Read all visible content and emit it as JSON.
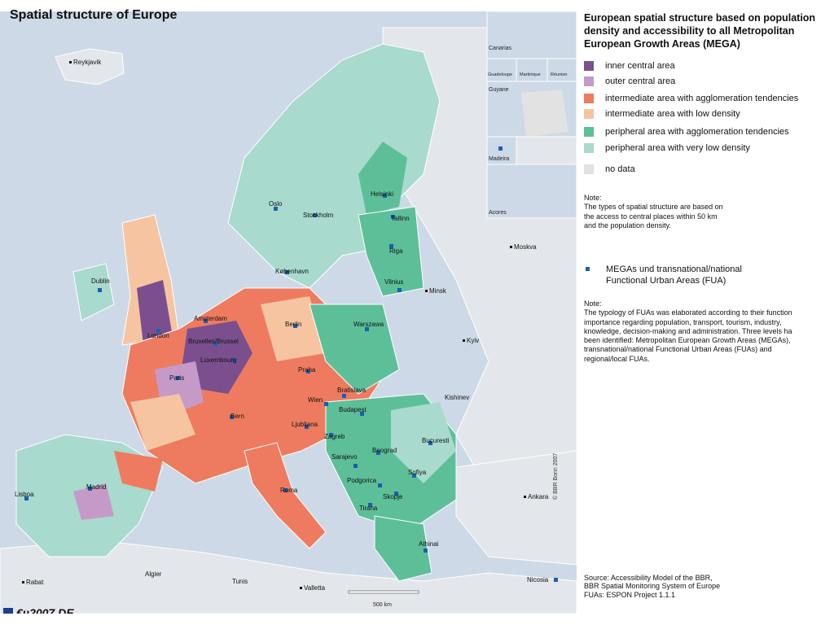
{
  "map": {
    "title": "Spatial structure of Europe",
    "copyright": "© BBR Bonn 2007",
    "scale_label": "500 km",
    "logo_text": "€υ2007.DE",
    "inset_labels": [
      "Canarias",
      "Guadeloupe",
      "Martinique",
      "Réunion",
      "Guyane",
      "Madeira",
      "Acores"
    ],
    "cities": [
      {
        "id": "reykjavik",
        "label": "Reykjavik"
      },
      {
        "id": "oslo",
        "label": "Oslo"
      },
      {
        "id": "stockholm",
        "label": "Stockholm"
      },
      {
        "id": "helsinki",
        "label": "Helsinki"
      },
      {
        "id": "tallinn",
        "label": "Tallinn"
      },
      {
        "id": "riga",
        "label": "Riga"
      },
      {
        "id": "moskva",
        "label": "Moskva"
      },
      {
        "id": "kobenhavn",
        "label": "København"
      },
      {
        "id": "vilnius",
        "label": "Vilnius"
      },
      {
        "id": "minsk",
        "label": "Minsk"
      },
      {
        "id": "dublin",
        "label": "Dublin"
      },
      {
        "id": "amsterdam",
        "label": "Amsterdam"
      },
      {
        "id": "berlin",
        "label": "Berlin"
      },
      {
        "id": "warszawa",
        "label": "Warszawa"
      },
      {
        "id": "london",
        "label": "London"
      },
      {
        "id": "bruxelles",
        "label": "Bruxelles/Brussel"
      },
      {
        "id": "kyiv",
        "label": "Kyiv"
      },
      {
        "id": "luxembourg",
        "label": "Luxembourg"
      },
      {
        "id": "praha",
        "label": "Praha"
      },
      {
        "id": "paris",
        "label": "Paris"
      },
      {
        "id": "bratislava",
        "label": "Bratislava"
      },
      {
        "id": "wien",
        "label": "Wien"
      },
      {
        "id": "kishinev",
        "label": "Kishinev"
      },
      {
        "id": "budapest",
        "label": "Budapest"
      },
      {
        "id": "bern",
        "label": "Bern"
      },
      {
        "id": "ljubljana",
        "label": "Ljubljana"
      },
      {
        "id": "zagreb",
        "label": "Zagreb"
      },
      {
        "id": "bucuresti",
        "label": "Bucuresti"
      },
      {
        "id": "beograd",
        "label": "Beograd"
      },
      {
        "id": "sarajevo",
        "label": "Sarajevo"
      },
      {
        "id": "sofiya",
        "label": "Sofiya"
      },
      {
        "id": "madrid",
        "label": "Madrid"
      },
      {
        "id": "podgorica",
        "label": "Podgorica"
      },
      {
        "id": "roma",
        "label": "Roma"
      },
      {
        "id": "skopje",
        "label": "Skopje"
      },
      {
        "id": "lisboa",
        "label": "Lisboa"
      },
      {
        "id": "tirana",
        "label": "Tirana"
      },
      {
        "id": "ankara",
        "label": "Ankara"
      },
      {
        "id": "athinai",
        "label": "Athinai"
      },
      {
        "id": "algier",
        "label": "Algier"
      },
      {
        "id": "tunis",
        "label": "Tunis"
      },
      {
        "id": "nicosia",
        "label": "Nicosia"
      },
      {
        "id": "rabat",
        "label": "Rabat"
      },
      {
        "id": "valletta",
        "label": "Valletta"
      }
    ]
  },
  "legend": {
    "title": "European spatial structure based on population density and accessibility to all Metropolitan European Growth Areas (MEGA)",
    "items": [
      {
        "label": "inner central area",
        "color": "#7b4f8e"
      },
      {
        "label": "outer central area",
        "color": "#c59ac9"
      },
      {
        "label": "intermediate area with agglomeration tendencies",
        "color": "#ee7b5f"
      },
      {
        "label": "intermediate area with low density",
        "color": "#f7c4a1"
      },
      {
        "label": "peripheral area with agglomeration tendencies",
        "color": "#5dbf98"
      },
      {
        "label": "peripheral area with very low density",
        "color": "#a8dacd"
      },
      {
        "label": "no data",
        "color": "#e2e2e2"
      }
    ],
    "note1": "Note:\nThe types of spatial structure are based on\nthe access to central places within 50 km\nand the population density.",
    "fua_label": "MEGAs und transnational/national\nFunctional Urban Areas (FUA)",
    "fua_color": "#1a5fb0",
    "note2": "Note:\nThe typology of FUAs was elaborated according to their function\nimportance regarding population, transport, tourism, industry,\nknowledge, decision-making and administration. Three levels ha\nbeen identified: Metropolitan European Growth Areas (MEGAs),\ntransnational/national Functional Urban Areas (FUAs) and\nregional/local FUAs.",
    "source": "Source: Accessibility Model of the BBR,\nBBR Spatial Monitoring System of Europe\nFUAs: ESPON Project 1.1.1"
  }
}
